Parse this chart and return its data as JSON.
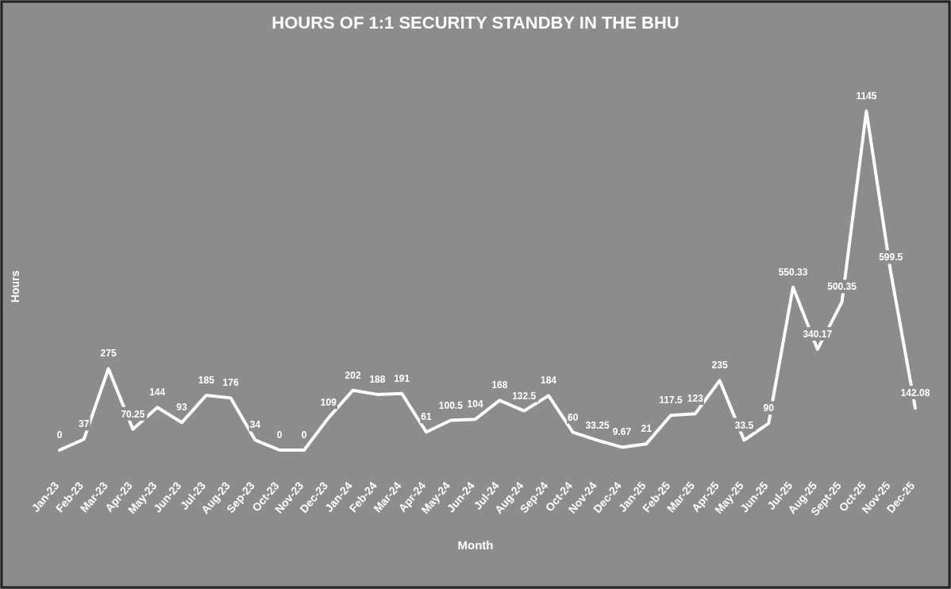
{
  "chart_data": {
    "type": "line",
    "title": "HOURS OF 1:1 SECURITY STANDBY IN THE BHU",
    "xlabel": "Month",
    "ylabel": "Hours",
    "categories": [
      "Jan-23",
      "Feb-23",
      "Mar-23",
      "Apr-23",
      "May-23",
      "Jun-23",
      "Jul-23",
      "Aug-23",
      "Sep-23",
      "Oct-23",
      "Nov-23",
      "Dec-23",
      "Jan-24",
      "Feb-24",
      "Mar-24",
      "Apr-24",
      "May-24",
      "Jun-24",
      "Jul-24",
      "Aug-24",
      "Sep-24",
      "Oct-24",
      "Nov-24",
      "Dec-24",
      "Jan-25",
      "Feb-25",
      "Mar-25",
      "Apr-25",
      "May-25",
      "Jun-25",
      "Jul-25",
      "Aug-25",
      "Sept-25",
      "Oct-25",
      "Nov-25",
      "Dec-25"
    ],
    "series": [
      {
        "color": "#ffffff",
        "values": [
          0,
          37,
          275,
          70.25,
          144,
          93,
          185,
          176,
          34,
          0,
          0,
          109,
          202,
          188,
          191,
          61,
          100.5,
          104,
          168,
          132.5,
          184,
          60,
          33.25,
          9.67,
          21,
          117.5,
          123,
          235,
          33.5,
          90,
          550.33,
          340.17,
          500.35,
          1145,
          599.5,
          142.08
        ]
      }
    ],
    "data_labels": true
  }
}
